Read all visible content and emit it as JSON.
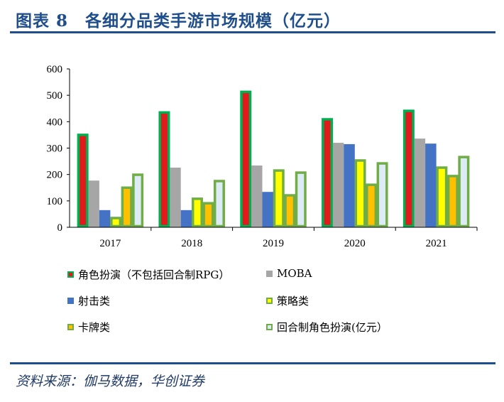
{
  "title": "图表 8　各细分品类手游市场规模（亿元）",
  "source": "资料来源：伽马数据，华创证券",
  "chart_data": {
    "type": "bar",
    "title": "各细分品类手游市场规模（亿元）",
    "categories": [
      "2017",
      "2018",
      "2019",
      "2020",
      "2021"
    ],
    "ylim": [
      0,
      600
    ],
    "yticks": [
      "0",
      "100",
      "200",
      "300",
      "400",
      "500",
      "600"
    ],
    "legend_position": "bottom",
    "series": [
      {
        "name": "角色扮演（不包括回合制RPG）",
        "values": [
          350,
          435,
          513,
          409,
          441
        ],
        "fill": "#E31A1C",
        "stroke": "#00B050"
      },
      {
        "name": "MOBA",
        "values": [
          177,
          226,
          234,
          320,
          336
        ],
        "fill": "#A6A6A6",
        "stroke": "none"
      },
      {
        "name": "射击类",
        "values": [
          65,
          65,
          134,
          315,
          317
        ],
        "fill": "#4472C4",
        "stroke": "none"
      },
      {
        "name": "策略类",
        "values": [
          35,
          108,
          215,
          253,
          226
        ],
        "fill": "#FFFF00",
        "stroke": "#70AD47"
      },
      {
        "name": "卡牌类",
        "values": [
          150,
          91,
          121,
          161,
          194
        ],
        "fill": "#FFC000",
        "stroke": "#70AD47"
      },
      {
        "name": "回合制角色扮演(亿元）",
        "values": [
          199,
          175,
          207,
          242,
          266
        ],
        "fill": "#DDEBF7",
        "stroke": "#70AD47"
      }
    ]
  }
}
